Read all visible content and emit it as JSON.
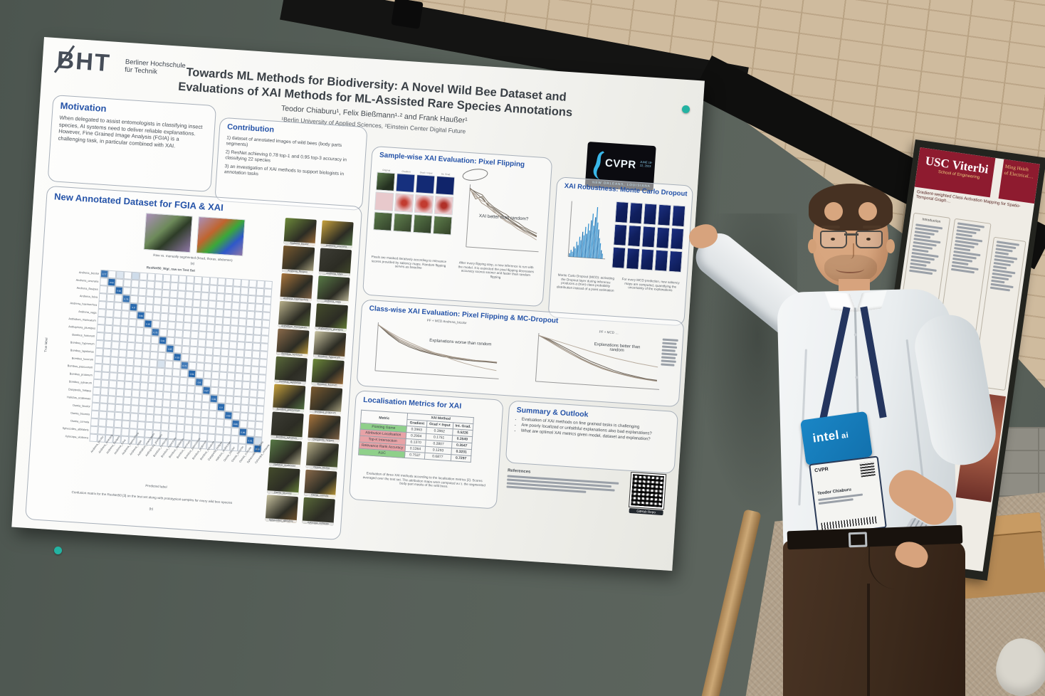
{
  "poster": {
    "org_logo": {
      "short": "BHT",
      "name_line1": "Berliner Hochschule",
      "name_line2": "für Technik"
    },
    "title_line1": "Towards ML Methods for Biodiversity: A Novel Wild Bee Dataset and",
    "title_line2": "Evaluations of XAI Methods for ML-Assisted Rare Species Annotations",
    "authors": "Teodor Chiaburu¹, Felix Bießmann¹·² and Frank Haußer¹",
    "affiliations": "¹Berlin University of Applied Sciences, ²Einstein Center Digital Future",
    "conference": {
      "name": "CVPR",
      "date": "JUNE 18-22, 2023",
      "location": "NEW ORLEANS, LOUISIANA"
    },
    "motivation": {
      "title": "Motivation",
      "body": "When delegated to assist entomologists in classifying insect species, AI systems need to deliver reliable explanations. However, Fine Grained Image Analysis (FGIA) is a challenging task, in particular combined with XAI."
    },
    "contribution": {
      "title": "Contribution",
      "items": [
        "1) dataset of annotated images of wild bees (body parts segments)",
        "2) ResNet achieving 0.78 top-1 and 0.95 top-3 accuracy in classifying 22 species",
        "3) an investigation of XAI methods to support biologists in annotation tasks"
      ]
    },
    "dataset": {
      "title": "New Annotated Dataset for FGIA & XAI",
      "fig_a_caption": "Raw vs. manually segmented (head, thorax, abdomen)",
      "fig_a_label": "(a)",
      "matrix_title": "ResNet50_Wgt_raw on Test Set",
      "y_axis_label": "True label",
      "x_axis_label": "Predicted label",
      "species": [
        "Andrena_bicolor",
        "Andrena_cineraria",
        "Andrena_flavipes",
        "Andrena_fulva",
        "Andrena_haemorrhoa",
        "Andrena_vaga",
        "Anthidium_manicatum",
        "Anthophora_plumipes",
        "Bombus_hortorum",
        "Bombus_hypnorum",
        "Bombus_lapidarius",
        "Bombus_lucorum",
        "Bombus_pascuorum",
        "Bombus_pratorum",
        "Bombus_sylvarum",
        "Dasypoda_hirtipes",
        "Halictus_scabiosae",
        "Osmia_bicolor",
        "Osmia_bicornis",
        "Osmia_cornuta",
        "Sphecodes_albilabris",
        "Xylocopa_violacea"
      ],
      "diagonal_accuracy": [
        0.77,
        0.93,
        0.92,
        0.79,
        0.9,
        0.89,
        0.95,
        0.79,
        0.91,
        0.85,
        0.93,
        0.72,
        0.94,
        0.8,
        0.87,
        0.83,
        0.9,
        0.88,
        0.86,
        0.89,
        0.91,
        0.95
      ],
      "offdiagonal_cells": [
        {
          "r": 0,
          "c": 2,
          "v": 0.07
        },
        {
          "r": 0,
          "c": 4,
          "v": 0.1
        },
        {
          "r": 11,
          "c": 8,
          "v": 0.08
        },
        {
          "r": 20,
          "c": 21,
          "v": 0.08
        }
      ],
      "fig_b_caption": "Confusion matrix for the ResNet50 [3] on the test set along with prototypical samples for every wild bee species",
      "fig_b_label": "(b)"
    },
    "samplewise": {
      "title": "Sample-wise XAI Evaluation: Pixel Flipping",
      "tile_col_labels": [
        "Original",
        "Gradient",
        "Grad × Input",
        "Int. Grad."
      ],
      "annotation": "XAI better than random?",
      "caption_left": "Pixels are masked iteratively according to relevance scores provided by saliency maps. Random flipping serves as baseline",
      "caption_right": "After every flipping step, a new inference is run with the model. It is expected the pixel flipping decreases accuracy scores sooner and faster than random flipping",
      "chart": {
        "type": "line",
        "curves": [
          [
            0.95,
            0.78,
            0.83,
            0.68,
            0.62,
            0.55,
            0.5,
            0.44,
            0.37,
            0.33,
            0.27,
            0.22
          ],
          [
            0.93,
            0.85,
            0.72,
            0.66,
            0.58,
            0.52,
            0.45,
            0.4,
            0.35,
            0.28,
            0.24,
            0.2
          ],
          [
            0.96,
            0.88,
            0.8,
            0.7,
            0.64,
            0.57,
            0.49,
            0.42,
            0.36,
            0.3,
            0.26,
            0.21
          ],
          [
            0.94,
            0.82,
            0.76,
            0.72,
            0.6,
            0.5,
            0.43,
            0.38,
            0.31,
            0.26,
            0.21,
            0.15
          ],
          [
            0.95,
            0.9,
            0.86,
            0.74,
            0.66,
            0.6,
            0.55,
            0.47,
            0.42,
            0.35,
            0.3,
            0.26
          ]
        ]
      }
    },
    "robustness": {
      "title": "XAI Robustness: Monte Carlo Dropout",
      "caption_left": "Monte Carlo Dropout (MCD): activating the Dropout layer during inference produces a (true) class probability distribution instead of a point estimation",
      "caption_right": "For every MCD prediction, new saliency maps are computed, quantifying the uncertainty of the explanations",
      "histogram": {
        "type": "bar",
        "values": [
          2,
          4,
          3,
          6,
          5,
          9,
          7,
          12,
          10,
          15,
          13,
          18,
          14,
          20,
          16,
          22,
          26,
          19,
          24,
          30,
          21,
          17,
          12,
          9,
          5,
          3
        ]
      }
    },
    "classwise": {
      "title": "Class-wise XAI Evaluation: Pixel Flipping & MC-Dropout",
      "left_chart_title": "PF + MCD Andrena_bicolor",
      "left_annotation": "Explanations worse than random",
      "right_chart_title": "PF + MCD …",
      "right_annotation": "Explanations better than random",
      "left_curves": [
        [
          0.98,
          0.8,
          0.65,
          0.55,
          0.47,
          0.42,
          0.38,
          0.35,
          0.33,
          0.32,
          0.31,
          0.31
        ],
        [
          0.98,
          0.82,
          0.68,
          0.58,
          0.5,
          0.44,
          0.4,
          0.36,
          0.34,
          0.32,
          0.32,
          0.31
        ],
        [
          0.98,
          0.78,
          0.62,
          0.52,
          0.45,
          0.4,
          0.36,
          0.33,
          0.31,
          0.3,
          0.3,
          0.29
        ],
        [
          0.98,
          0.84,
          0.72,
          0.62,
          0.53,
          0.45,
          0.38,
          0.3,
          0.24,
          0.19,
          0.15,
          0.12
        ]
      ],
      "right_curves": [
        [
          0.98,
          0.88,
          0.76,
          0.64,
          0.52,
          0.42,
          0.34,
          0.27,
          0.22,
          0.18,
          0.15,
          0.13
        ],
        [
          0.98,
          0.86,
          0.73,
          0.61,
          0.5,
          0.4,
          0.32,
          0.26,
          0.21,
          0.17,
          0.14,
          0.12
        ],
        [
          0.98,
          0.9,
          0.79,
          0.68,
          0.56,
          0.46,
          0.38,
          0.3,
          0.24,
          0.2,
          0.16,
          0.14
        ],
        [
          0.98,
          0.92,
          0.86,
          0.8,
          0.74,
          0.68,
          0.63,
          0.58,
          0.54,
          0.5,
          0.47,
          0.44
        ]
      ]
    },
    "localisation": {
      "title": "Localisation Metrics for XAI",
      "group_header": "XAI Method",
      "metric_header": "Metric",
      "columns": [
        "Gradient",
        "Grad × Input",
        "Int. Grad."
      ],
      "rows": [
        {
          "name": "Pointing Game",
          "highlight": "green",
          "values": [
            "0.3963",
            "0.3962",
            "0.5226"
          ]
        },
        {
          "name": "Attribution Localisation",
          "highlight": "red",
          "values": [
            "0.2904",
            "0.1751",
            "0.3549"
          ]
        },
        {
          "name": "Top-K Intersection",
          "highlight": "red",
          "values": [
            "0.1370",
            "0.2807",
            "0.3547"
          ]
        },
        {
          "name": "Relevance Rank Accuracy",
          "highlight": "red",
          "values": [
            "0.1364",
            "0.1293",
            "0.3231"
          ]
        },
        {
          "name": "AUC",
          "highlight": "green",
          "values": [
            "0.7537",
            "0.6877",
            "0.7297"
          ]
        }
      ],
      "caption": "Evaluation of three XAI methods according to the localisation metrics [2]. Scores averaged over the test set. The attribution maps were computed w.r.t. the segmented body-part masks of the wild bees."
    },
    "summary": {
      "title": "Summary & Outlook",
      "bullets": [
        "Evaluation of XAI methods on fine grained tasks is challenging",
        "Are poorly localized or unfaithful explanations also bad explanations?",
        "What are optimal XAI metrics given model, dataset and explanation?"
      ]
    },
    "references": {
      "label": "References",
      "line_count": 4
    },
    "qr_label": "GitHub Repo"
  },
  "right_poster": {
    "org": "USC Viterbi",
    "org_sub": "School of Engineering",
    "accent_line1": "Ming Hsieh",
    "accent_line2": "of Electrical…",
    "title": "Gradient-weighted Class Activation Mapping for Spatio-Temporal Graph…",
    "section1": "Introduction",
    "section2": "Preliminaries"
  },
  "badge": {
    "lanyard_brand": "intel",
    "lanyard_brand_suffix": "ai",
    "card_title": "CVPR",
    "card_name": "Teodor Chiaburu"
  },
  "palette": {
    "heading_blue": "#2553a8",
    "matrix_blue": "#1b5fa8",
    "usc_cardinal": "#8e1b2f",
    "usc_gold": "#e8c77a",
    "intel_blue": "#1a86c6",
    "board_gray_green": "#576059",
    "wall_tan": "#cfbb9e"
  }
}
